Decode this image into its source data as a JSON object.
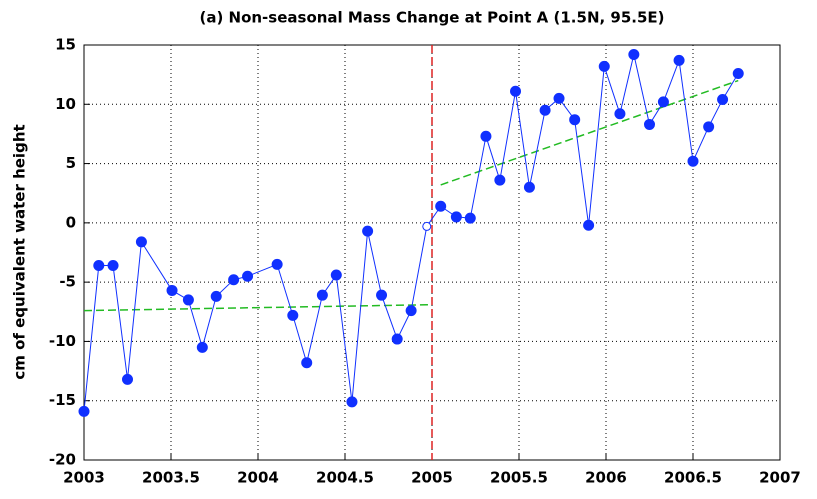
{
  "chart_data": {
    "type": "line",
    "title": "(a) Non-seasonal Mass Change at Point A (1.5N, 95.5E)",
    "y_label": "cm of equivalent water height",
    "x": [
      2003.0,
      2003.085,
      2003.167,
      2003.25,
      2003.33,
      2003.506,
      2003.6,
      2003.68,
      2003.76,
      2003.86,
      2003.94,
      2004.11,
      2004.2,
      2004.28,
      2004.37,
      2004.45,
      2004.54,
      2004.63,
      2004.71,
      2004.8,
      2004.88,
      2004.97,
      2005.05,
      2005.14,
      2005.22,
      2005.31,
      2005.39,
      2005.48,
      2005.56,
      2005.65,
      2005.73,
      2005.82,
      2005.9,
      2005.99,
      2006.08,
      2006.16,
      2006.25,
      2006.33,
      2006.42,
      2006.5,
      2006.59,
      2006.67,
      2006.76
    ],
    "values": [
      -15.9,
      -3.6,
      -3.6,
      -13.2,
      -1.6,
      -5.7,
      -6.5,
      -10.5,
      -6.2,
      -4.8,
      -4.5,
      -3.5,
      -7.8,
      -11.8,
      -6.1,
      -4.4,
      -15.1,
      -0.7,
      -6.1,
      -9.8,
      -7.4,
      -0.3,
      1.4,
      0.5,
      0.4,
      7.3,
      3.6,
      11.1,
      3.0,
      9.5,
      10.5,
      8.7,
      -0.2,
      13.2,
      9.2,
      14.2,
      8.3,
      10.2,
      13.7,
      5.2,
      8.1,
      10.4,
      12.6
    ],
    "color": "#1030ff",
    "hollow_points": [
      21
    ],
    "trend_lines": [
      {
        "x": [
          2003.0,
          2005.0
        ],
        "values": [
          -7.4,
          -6.9
        ],
        "color": "#22bb22"
      },
      {
        "x": [
          2005.05,
          2006.76
        ],
        "values": [
          3.2,
          12.0
        ],
        "color": "#22bb22"
      }
    ],
    "vline": {
      "x": 2005,
      "color": "#dd2222"
    },
    "xlim": [
      2003,
      2007
    ],
    "xticks": [
      2003,
      2003.5,
      2004,
      2004.5,
      2005,
      2005.5,
      2006,
      2006.5,
      2007
    ],
    "ylim": [
      -20,
      15
    ],
    "yticks": [
      -20,
      -15,
      -10,
      -5,
      0,
      5,
      10,
      15
    ],
    "grid": true
  }
}
